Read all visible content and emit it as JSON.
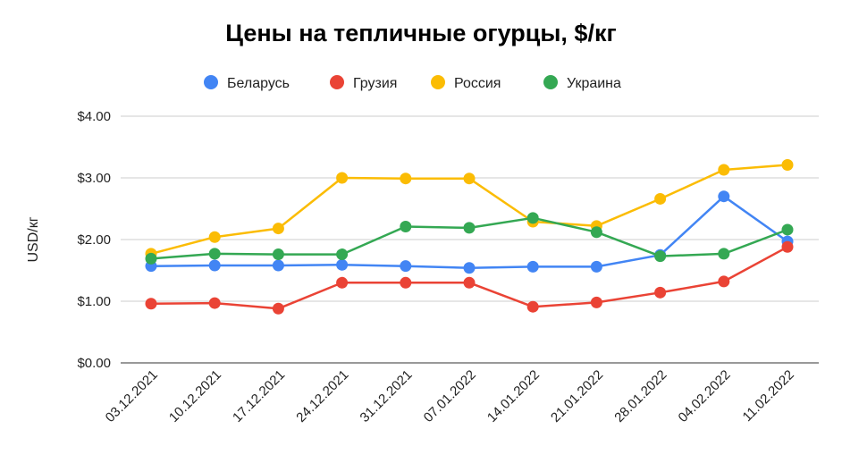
{
  "chart_data": {
    "type": "line",
    "title": "Цены на тепличные огурцы, $/кг",
    "ylabel": "USD/кг",
    "xlabel": "",
    "ylim": [
      0,
      4
    ],
    "yticks": [
      "$0.00",
      "$1.00",
      "$2.00",
      "$3.00",
      "$4.00"
    ],
    "grid": true,
    "legend_position": "top",
    "categories": [
      "03.12.2021",
      "10.12.2021",
      "17.12.2021",
      "24.12.2021",
      "31.12.2021",
      "07.01.2022",
      "14.01.2022",
      "21.01.2022",
      "28.01.2022",
      "04.02.2022",
      "11.02.2022"
    ],
    "series": [
      {
        "name": "Беларусь",
        "color": "#4285f4",
        "values": [
          1.57,
          1.58,
          1.58,
          1.59,
          1.57,
          1.54,
          1.56,
          1.56,
          1.75,
          2.7,
          1.97
        ]
      },
      {
        "name": "Грузия",
        "color": "#ea4335",
        "values": [
          0.96,
          0.97,
          0.88,
          1.3,
          1.3,
          1.3,
          0.91,
          0.98,
          1.14,
          1.32,
          1.88
        ]
      },
      {
        "name": "Россия",
        "color": "#fbbc04",
        "values": [
          1.77,
          2.04,
          2.18,
          3.0,
          2.99,
          2.99,
          2.29,
          2.22,
          2.66,
          3.13,
          3.21
        ]
      },
      {
        "name": "Украина",
        "color": "#34a853",
        "values": [
          1.69,
          1.77,
          1.76,
          1.76,
          2.21,
          2.19,
          2.35,
          2.12,
          1.73,
          1.77,
          2.16
        ]
      }
    ]
  }
}
